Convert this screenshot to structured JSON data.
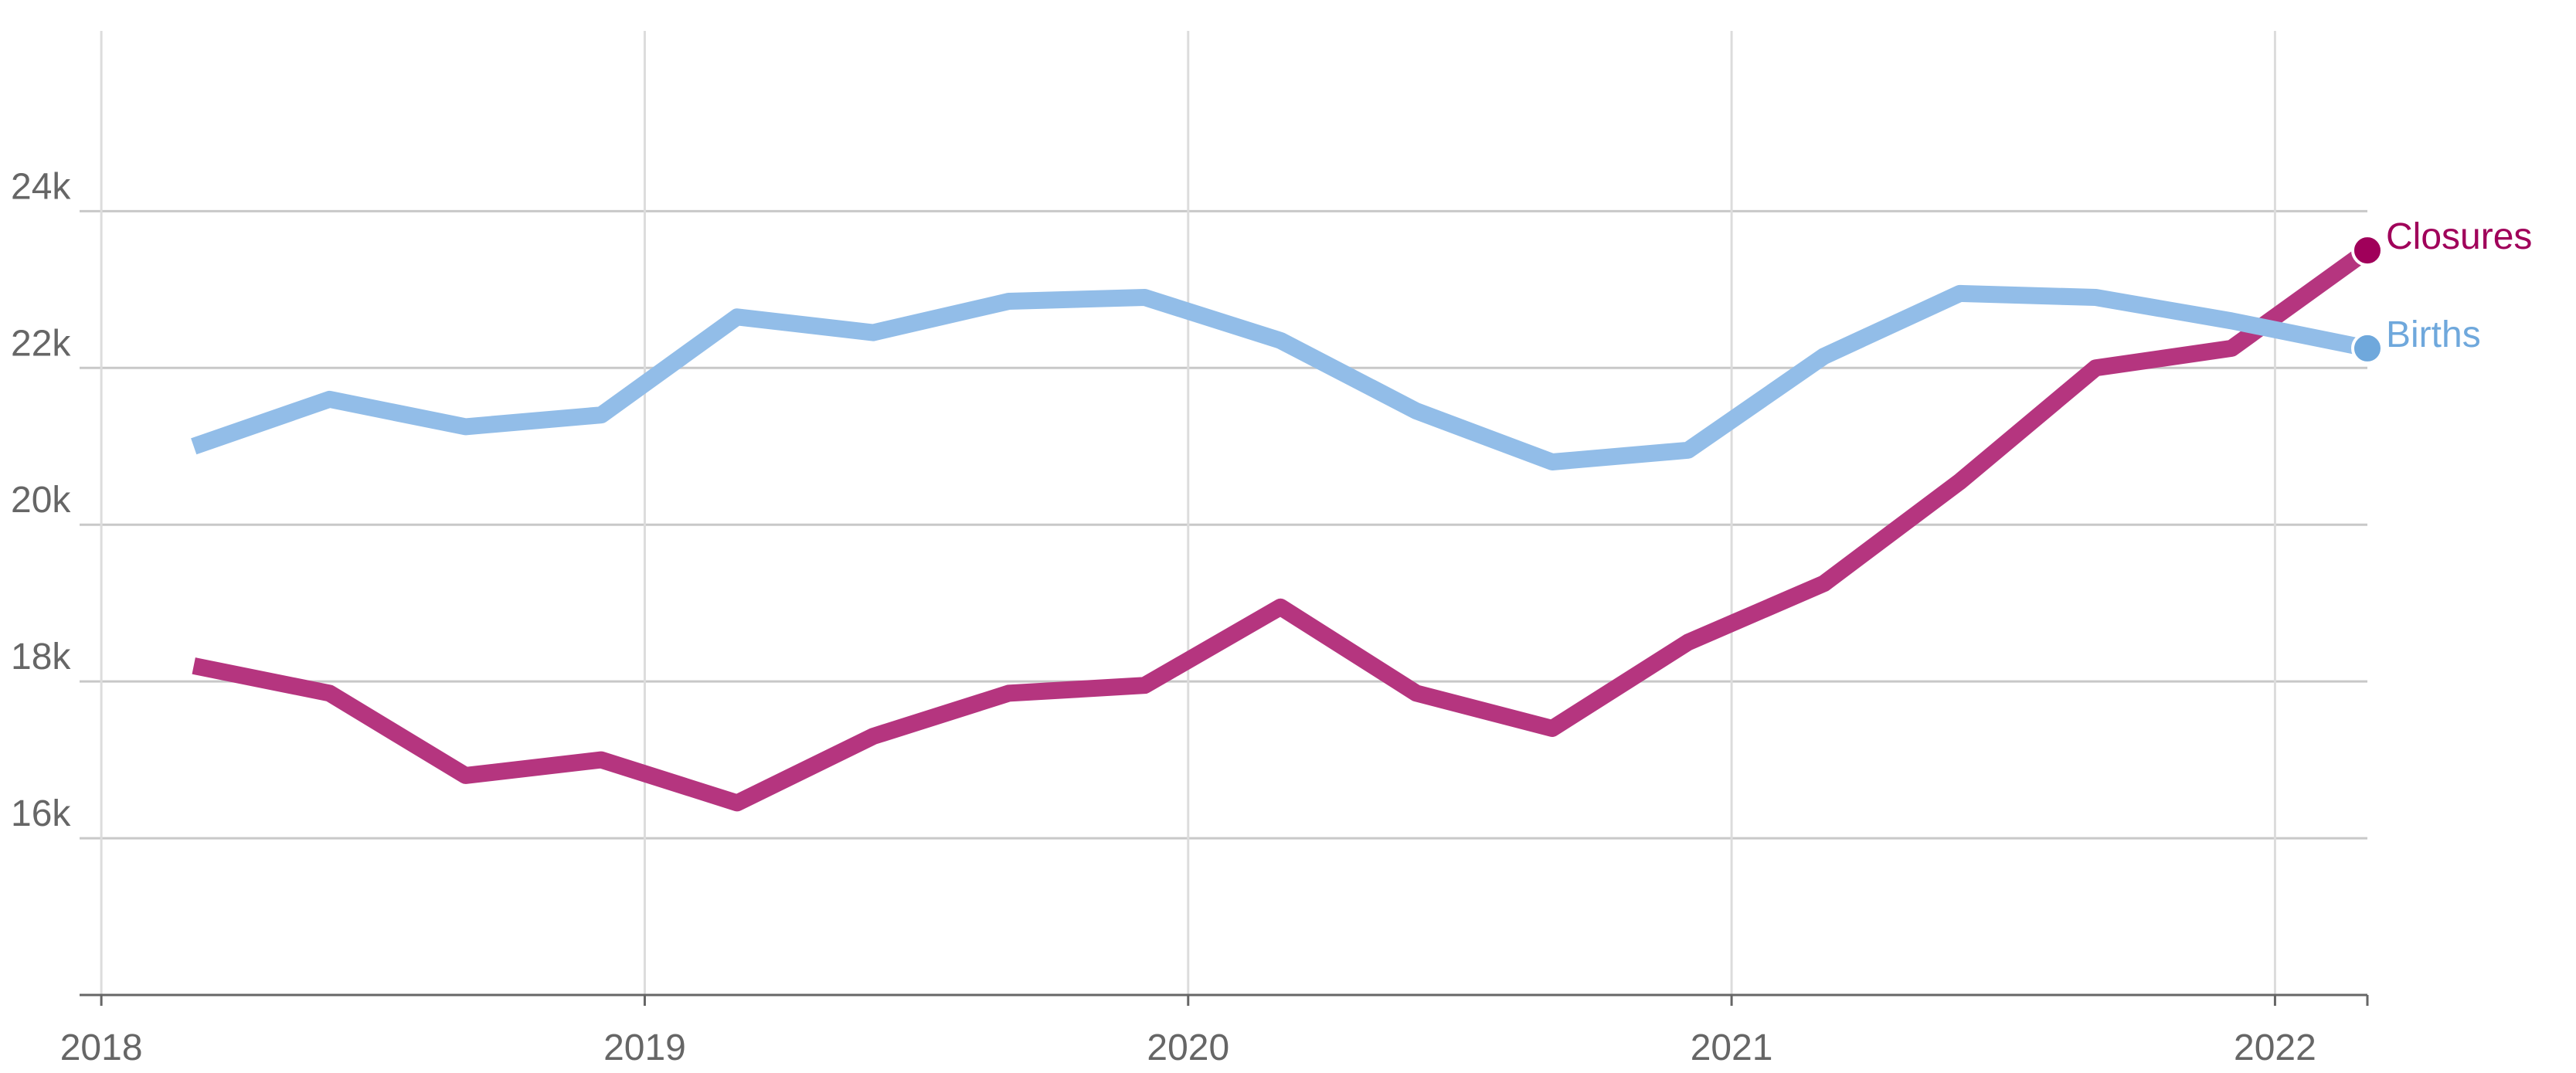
{
  "chart_data": {
    "type": "line",
    "title": "",
    "xlabel": "",
    "ylabel": "",
    "x_ticks": [
      "2018",
      "2019",
      "2020",
      "2021",
      "2022"
    ],
    "y_ticks": [
      "16k",
      "18k",
      "20k",
      "22k",
      "24k"
    ],
    "y_tick_values": [
      16000,
      18000,
      20000,
      22000,
      24000
    ],
    "xlim": [
      2017.96,
      2022.17
    ],
    "ylim": [
      14000,
      26300
    ],
    "grid": true,
    "legend": "end-of-line labels",
    "x": [
      2018.17,
      2018.42,
      2018.67,
      2018.92,
      2019.17,
      2019.42,
      2019.67,
      2019.92,
      2020.17,
      2020.42,
      2020.67,
      2020.92,
      2021.17,
      2021.42,
      2021.67,
      2021.92,
      2022.17
    ],
    "series": [
      {
        "name": "Closures",
        "color": "#b5357f",
        "end_color": "#a0005a",
        "values": [
          18200,
          17850,
          16800,
          17000,
          16450,
          17300,
          17850,
          17950,
          18950,
          17850,
          17400,
          18500,
          19250,
          20550,
          22000,
          22250,
          23500
        ]
      },
      {
        "name": "Births",
        "color": "#92bde8",
        "end_color": "#6fa8dc",
        "values": [
          21000,
          21600,
          21250,
          21400,
          22650,
          22450,
          22850,
          22900,
          22350,
          21450,
          20800,
          20950,
          22150,
          22950,
          22900,
          22600,
          22250
        ]
      }
    ]
  }
}
